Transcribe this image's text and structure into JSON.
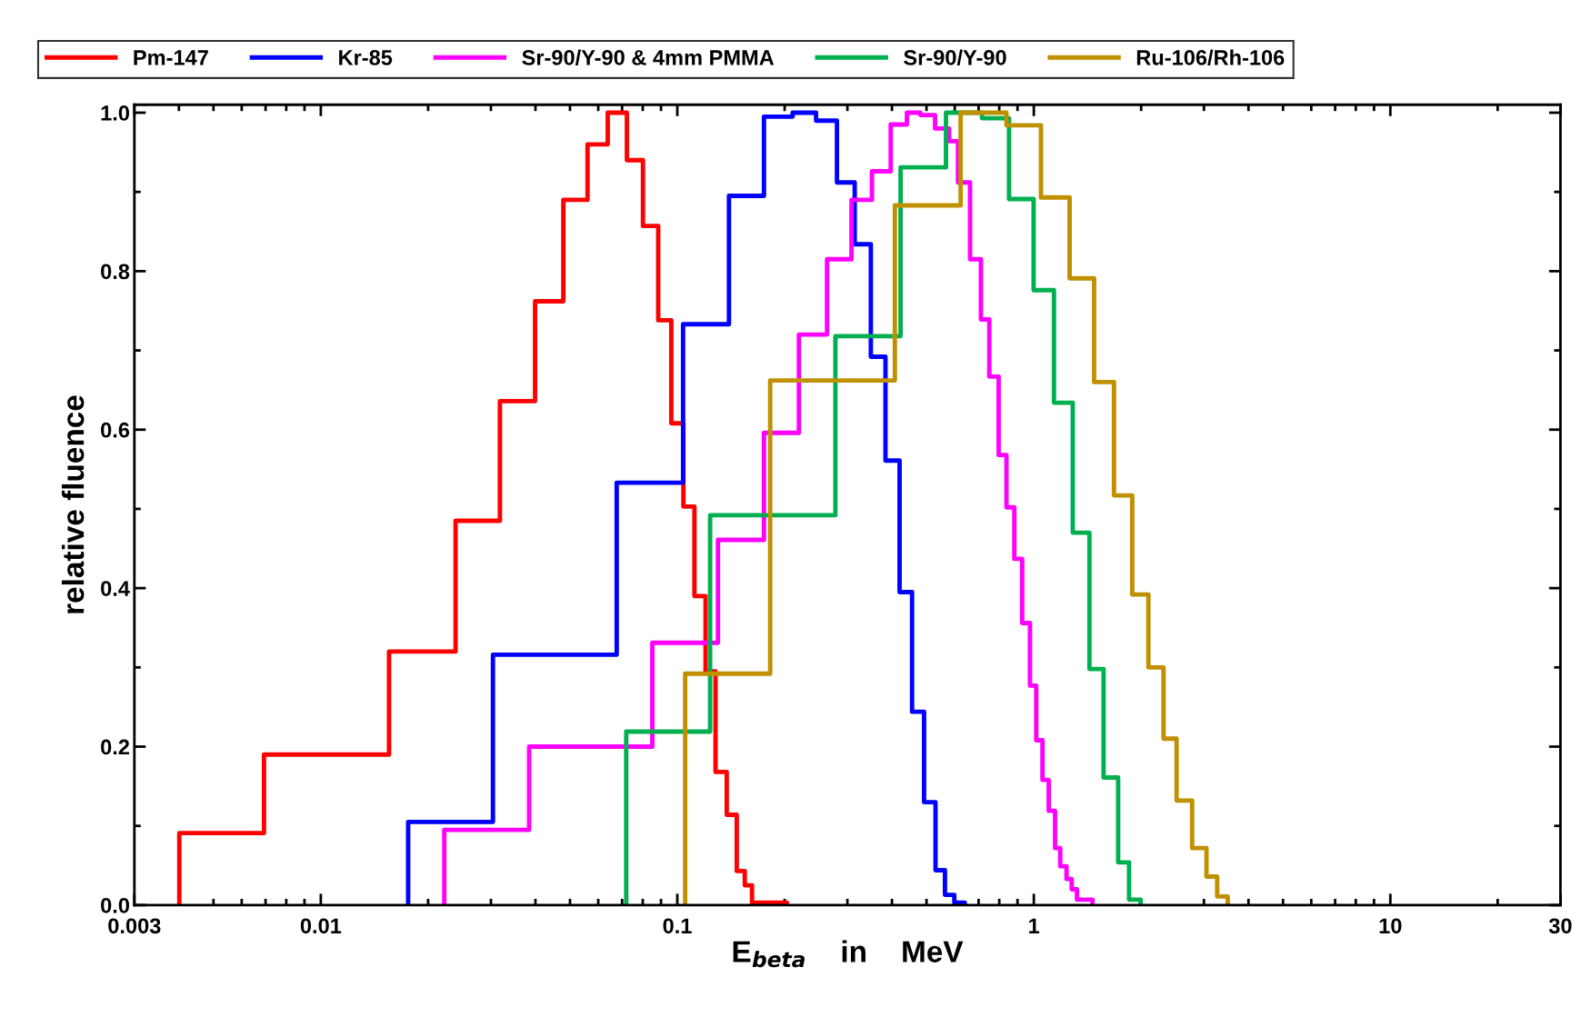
{
  "chart_data": {
    "type": "step",
    "xlabel": "E$_{beta}$    in    MeV",
    "ylabel": "relative fluence",
    "log": "x",
    "legend": "top",
    "line_style": "solid",
    "marker": "none",
    "xlim": [
      0.003,
      30
    ],
    "xticks": [
      0.003,
      0.01,
      0.1,
      1,
      10,
      30
    ],
    "ylim": [
      0,
      1.01
    ],
    "yticks": [
      {
        "value": 0,
        "label": "0.0"
      },
      {
        "value": 0.2,
        "label": "0.2"
      },
      {
        "value": 0.4,
        "label": "0.4"
      },
      {
        "value": 0.6,
        "label": "0.6"
      },
      {
        "value": 0.8,
        "label": "0.8"
      },
      {
        "value": 1,
        "label": "1.0"
      }
    ],
    "series": [
      {
        "name": "Pm-147",
        "color": "#ff0000",
        "x": [
          0.00401,
          0.00401,
          0.00693,
          0.01554,
          0.02388,
          0.0318,
          0.0399,
          0.0479,
          0.056,
          0.0638,
          0.0722,
          0.0801,
          0.0884,
          0.0962,
          0.104,
          0.1117,
          0.12,
          0.128,
          0.1376,
          0.1468,
          0.1546,
          0.162,
          0.203
        ],
        "values": [
          0,
          0.091,
          0.19,
          0.32,
          0.485,
          0.636,
          0.762,
          0.89,
          0.96,
          1.0,
          0.94,
          0.857,
          0.738,
          0.608,
          0.503,
          0.39,
          0.295,
          0.168,
          0.114,
          0.043,
          0.025,
          0.003,
          0
        ]
      },
      {
        "name": "Kr-85",
        "color": "#0000ff",
        "x": [
          0.01758,
          0.01758,
          0.0304,
          0.0676,
          0.1038,
          0.1396,
          0.175,
          0.2106,
          0.245,
          0.2804,
          0.3145,
          0.349,
          0.3836,
          0.4202,
          0.4555,
          0.4922,
          0.53,
          0.5633,
          0.5984,
          0.6403
        ],
        "values": [
          0,
          0.105,
          0.316,
          0.533,
          0.733,
          0.895,
          0.995,
          1.0,
          0.99,
          0.912,
          0.834,
          0.692,
          0.561,
          0.395,
          0.244,
          0.13,
          0.044,
          0.013,
          0.003,
          0
        ]
      },
      {
        "name": "Sr-90/Y-90 & 4mm PMMA",
        "color": "#ff00ff",
        "x": [
          0.0222,
          0.0222,
          0.0384,
          0.0851,
          0.13,
          0.175,
          0.2193,
          0.263,
          0.308,
          0.3515,
          0.3968,
          0.4405,
          0.4807,
          0.5284,
          0.5786,
          0.6127,
          0.6624,
          0.7106,
          0.75,
          0.7968,
          0.838,
          0.8817,
          0.9273,
          0.9754,
          1.0156,
          1.0575,
          1.101,
          1.147,
          1.186,
          1.235,
          1.277,
          1.321,
          1.461
        ],
        "values": [
          0,
          0.095,
          0.2,
          0.331,
          0.461,
          0.596,
          0.72,
          0.815,
          0.89,
          0.926,
          0.985,
          1.0,
          0.997,
          0.98,
          0.964,
          0.912,
          0.815,
          0.739,
          0.667,
          0.568,
          0.502,
          0.437,
          0.356,
          0.277,
          0.208,
          0.158,
          0.119,
          0.072,
          0.049,
          0.033,
          0.02,
          0.007,
          0
        ]
      },
      {
        "name": "Sr-90/Y-90",
        "color": "#00b050",
        "x": [
          0.0719,
          0.0719,
          0.1236,
          0.2776,
          0.4229,
          0.567,
          0.7155,
          0.852,
          0.9986,
          1.139,
          1.286,
          1.432,
          1.569,
          1.724,
          1.85,
          1.993
        ],
        "values": [
          0,
          0.219,
          0.492,
          0.718,
          0.931,
          1.0,
          0.993,
          0.891,
          0.776,
          0.634,
          0.47,
          0.298,
          0.161,
          0.054,
          0.007,
          0
        ]
      },
      {
        "name": "Ru-106/Rh-106",
        "color": "#c09000",
        "x": [
          0.1052,
          0.1052,
          0.1822,
          0.4076,
          0.6232,
          0.838,
          1.047,
          1.26,
          1.476,
          1.678,
          1.888,
          2.096,
          2.311,
          2.514,
          2.78,
          3.05,
          3.268,
          3.498
        ],
        "values": [
          0,
          0.292,
          0.662,
          0.883,
          1.0,
          0.984,
          0.893,
          0.791,
          0.66,
          0.517,
          0.392,
          0.3,
          0.21,
          0.132,
          0.072,
          0.036,
          0.011,
          0
        ]
      }
    ]
  }
}
